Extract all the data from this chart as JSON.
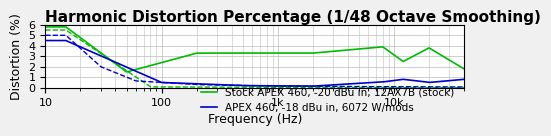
{
  "title": "Harmonic Distortion Percentage (1/48 Octave Smoothing)",
  "xlabel": "Frequency (Hz)",
  "ylabel": "Distortion (%)",
  "xlim": [
    10,
    40000
  ],
  "ylim": [
    0,
    6
  ],
  "yticks": [
    0,
    1,
    2,
    3,
    4,
    5,
    6
  ],
  "legend_entries": [
    "Stock APEX 460, -20 dBu in, 12AX7B (stock)",
    "APEX 460, -18 dBu in, 6072 W/mods"
  ],
  "legend_colors": [
    "#00aa00",
    "#0000cc"
  ],
  "background_color": "#f0f0f0",
  "plot_bg_color": "#ffffff",
  "title_fontsize": 11,
  "axis_fontsize": 9,
  "legend_fontsize": 7.5
}
